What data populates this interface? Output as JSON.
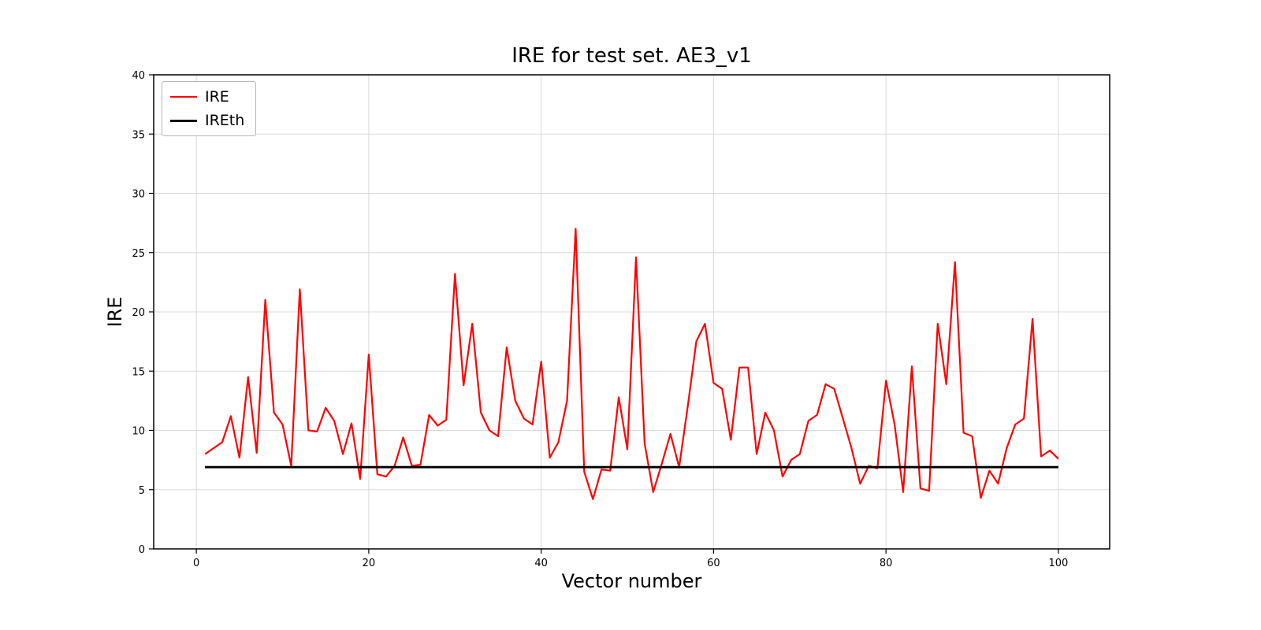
{
  "figure": {
    "title": "IRE for test set. AE3_v1",
    "xlabel": "Vector number",
    "ylabel": "IRE"
  },
  "legend": {
    "entries": [
      {
        "label": "IRE",
        "color": "#ff0000"
      },
      {
        "label": "IREth",
        "color": "#000000"
      }
    ]
  },
  "chart_data": {
    "type": "line",
    "title": "IRE for test set. AE3_v1",
    "xlabel": "Vector number",
    "ylabel": "IRE",
    "xlim": [
      -4.95,
      105.95
    ],
    "ylim": [
      0,
      40
    ],
    "x_ticks": [
      0,
      20,
      40,
      60,
      80,
      100
    ],
    "y_ticks": [
      0,
      5,
      10,
      15,
      20,
      25,
      30,
      35,
      40
    ],
    "grid": true,
    "grid_color": "#d9d9d9",
    "legend_position": "upper left",
    "x": [
      1,
      2,
      3,
      4,
      5,
      6,
      7,
      8,
      9,
      10,
      11,
      12,
      13,
      14,
      15,
      16,
      17,
      18,
      19,
      20,
      21,
      22,
      23,
      24,
      25,
      26,
      27,
      28,
      29,
      30,
      31,
      32,
      33,
      34,
      35,
      36,
      37,
      38,
      39,
      40,
      41,
      42,
      43,
      44,
      45,
      46,
      47,
      48,
      49,
      50,
      51,
      52,
      53,
      54,
      55,
      56,
      57,
      58,
      59,
      60,
      61,
      62,
      63,
      64,
      65,
      66,
      67,
      68,
      69,
      70,
      71,
      72,
      73,
      74,
      75,
      76,
      77,
      78,
      79,
      80,
      81,
      82,
      83,
      84,
      85,
      86,
      87,
      88,
      89,
      90,
      91,
      92,
      93,
      94,
      95,
      96,
      97,
      98,
      99,
      100
    ],
    "series": [
      {
        "name": "IRE",
        "color": "#ff0000",
        "width": 2.2,
        "values": [
          8.0,
          8.5,
          9.0,
          11.2,
          7.7,
          14.5,
          8.1,
          21.0,
          11.5,
          10.5,
          7.0,
          21.9,
          10.0,
          9.9,
          11.9,
          10.8,
          8.0,
          10.6,
          5.9,
          16.4,
          6.3,
          6.1,
          7.0,
          9.4,
          7.0,
          7.1,
          11.3,
          10.4,
          10.9,
          23.2,
          13.8,
          19.0,
          11.5,
          10.0,
          9.5,
          17.0,
          12.5,
          11.0,
          10.5,
          15.8,
          7.7,
          9.0,
          12.5,
          27.0,
          6.5,
          4.2,
          6.7,
          6.6,
          12.8,
          8.4,
          24.6,
          8.9,
          4.8,
          7.2,
          9.7,
          6.9,
          12.0,
          17.5,
          19.0,
          14.0,
          13.5,
          9.2,
          15.3,
          15.3,
          8.0,
          11.5,
          10.0,
          6.1,
          7.5,
          8.0,
          10.8,
          11.3,
          13.9,
          13.5,
          11.0,
          8.5,
          5.5,
          7.0,
          6.8,
          14.2,
          10.5,
          4.8,
          15.4,
          5.1,
          4.9,
          19.0,
          13.9,
          24.2,
          9.8,
          9.5,
          4.3,
          6.6,
          5.5,
          8.5,
          10.5,
          11.0,
          19.4,
          7.8,
          8.3,
          7.6
        ]
      },
      {
        "name": "IREth",
        "color": "#000000",
        "width": 2.8,
        "constant": 6.9
      }
    ]
  }
}
